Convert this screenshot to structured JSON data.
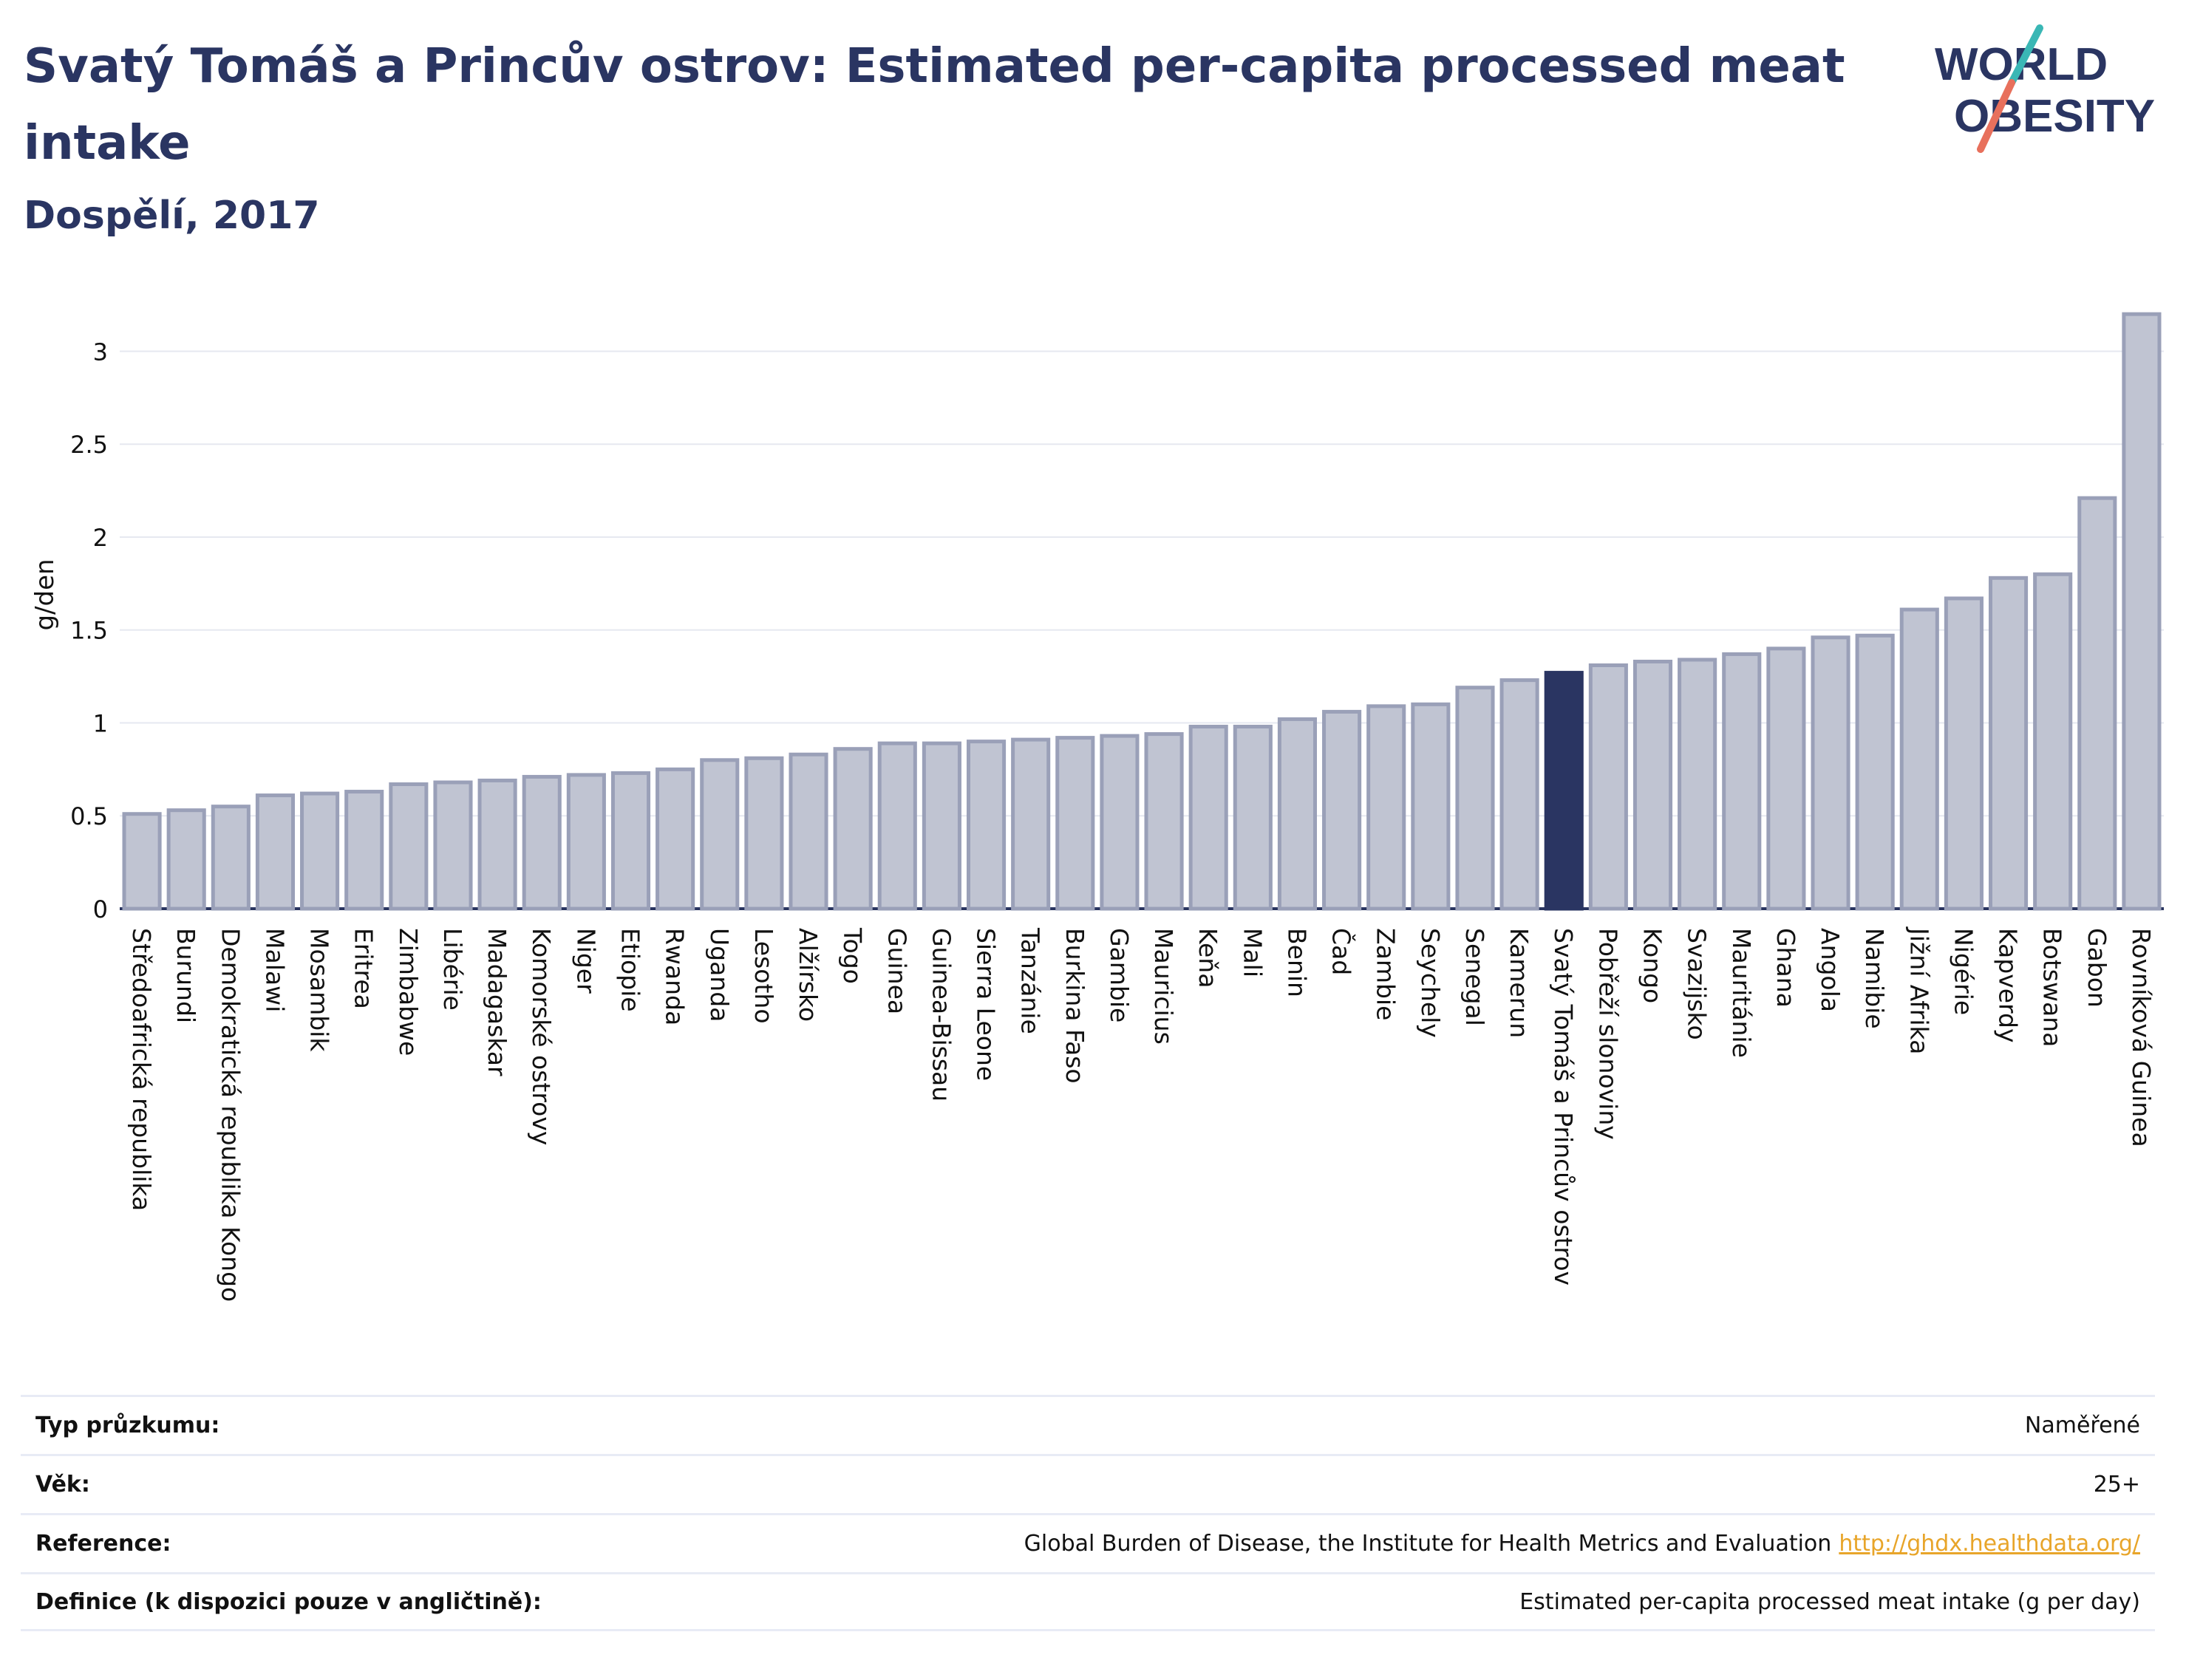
{
  "title": "Svatý Tomáš a Princův ostrov: Estimated per-capita processed meat intake",
  "subtitle": "Dospělí, 2017",
  "logo": {
    "line1": "WORLD",
    "line2": "OBESITY"
  },
  "colors": {
    "bar": "#c0c4d2",
    "bar_border": "#9aa0b8",
    "highlight": "#2a3562",
    "grid": "#e6e8f0",
    "axis": "#2a3560"
  },
  "chart_data": {
    "type": "bar",
    "ylabel": "g/den",
    "ylim": [
      0,
      3.3
    ],
    "yticks": [
      0,
      0.5,
      1,
      1.5,
      2,
      2.5,
      3
    ],
    "ytick_labels": [
      "0",
      "0.5",
      "1",
      "1.5",
      "2",
      "2.5",
      "3"
    ],
    "grid": true,
    "highlight": "Svatý Tomáš a Princův ostrov",
    "categories": [
      "Středoafrická republika",
      "Burundi",
      "Demokratická republika Kongo",
      "Malawi",
      "Mosambik",
      "Eritrea",
      "Zimbabwe",
      "Libérie",
      "Madagaskar",
      "Komorské ostrovy",
      "Niger",
      "Etiopie",
      "Rwanda",
      "Uganda",
      "Lesotho",
      "Alžírsko",
      "Togo",
      "Guinea",
      "Guinea-Bissau",
      "Sierra Leone",
      "Tanzánie",
      "Burkina Faso",
      "Gambie",
      "Mauricius",
      "Keňa",
      "Mali",
      "Benin",
      "Čad",
      "Zambie",
      "Seychely",
      "Senegal",
      "Kamerun",
      "Svatý Tomáš a Princův ostrov",
      "Pobřeží slonoviny",
      "Kongo",
      "Svazijsko",
      "Mauritánie",
      "Ghana",
      "Angola",
      "Namibie",
      "Jižní Afrika",
      "Nigérie",
      "Kapverdy",
      "Botswana",
      "Gabon",
      "Rovníková Guinea"
    ],
    "values": [
      0.51,
      0.53,
      0.55,
      0.61,
      0.62,
      0.63,
      0.67,
      0.68,
      0.69,
      0.71,
      0.72,
      0.73,
      0.75,
      0.8,
      0.81,
      0.83,
      0.86,
      0.89,
      0.89,
      0.9,
      0.91,
      0.92,
      0.93,
      0.94,
      0.98,
      0.98,
      1.02,
      1.06,
      1.09,
      1.1,
      1.19,
      1.23,
      1.27,
      1.31,
      1.33,
      1.34,
      1.37,
      1.4,
      1.46,
      1.47,
      1.61,
      1.67,
      1.78,
      1.8,
      2.21,
      3.2
    ]
  },
  "meta": [
    {
      "label": "Typ průzkumu:",
      "value": "Naměřené"
    },
    {
      "label": "Věk:",
      "value": "25+"
    },
    {
      "label": "Reference:",
      "value": "Global Burden of Disease, the Institute for Health Metrics and Evaluation",
      "link": "http://ghdx.healthdata.org/"
    },
    {
      "label": "Definice (k dispozici pouze v angličtině):",
      "value": "Estimated per-capita processed meat intake (g per day)"
    }
  ]
}
